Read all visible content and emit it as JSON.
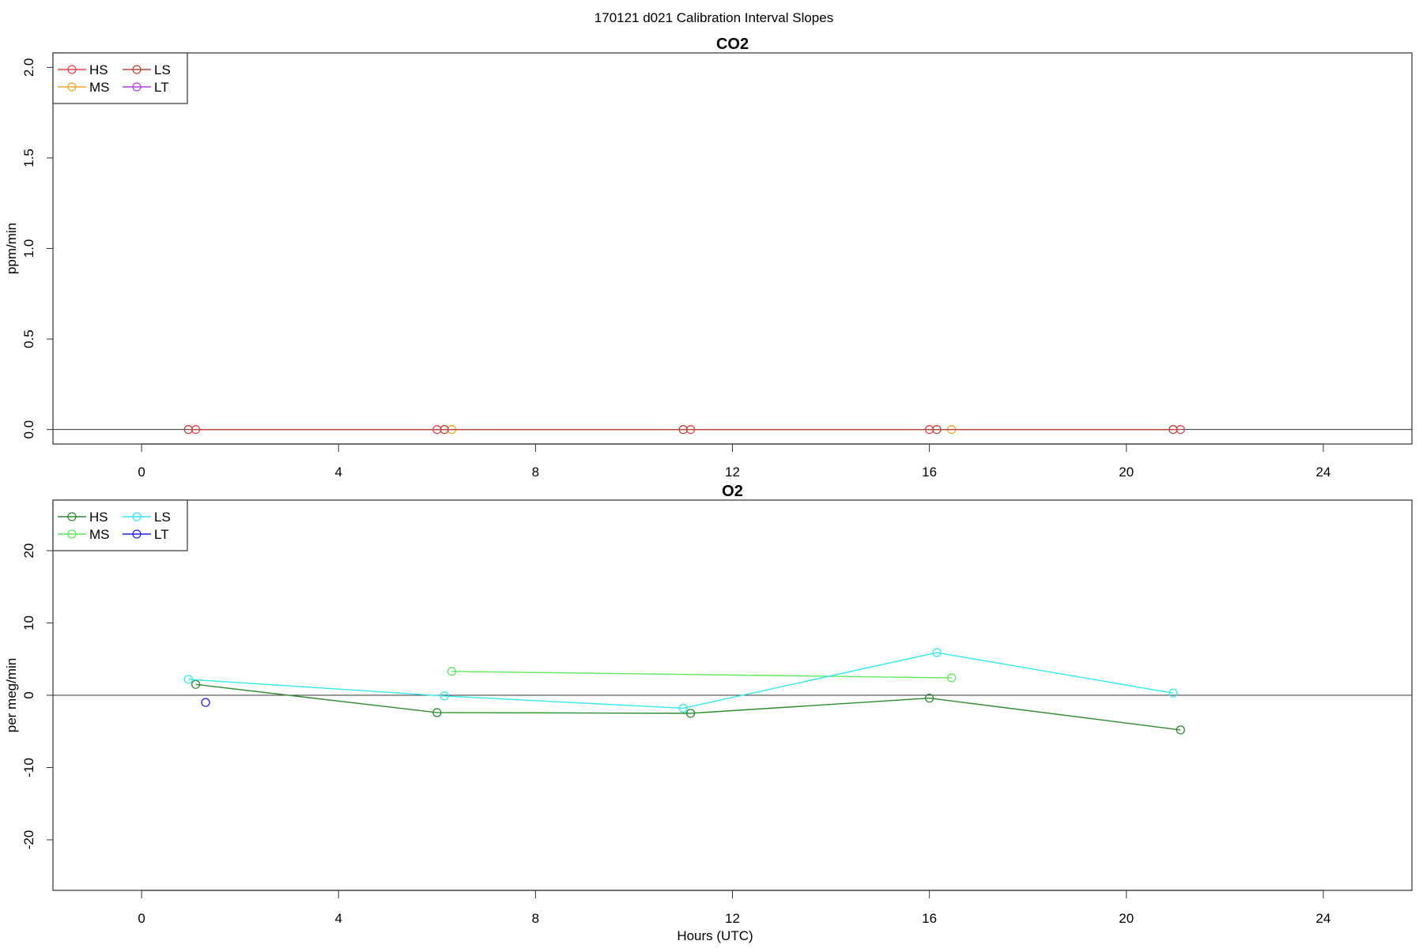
{
  "page_title": "170121   d021   Calibration Interval Slopes",
  "chart_data": [
    {
      "type": "line",
      "title": "CO2",
      "xlabel": "",
      "ylabel": "ppm/min",
      "xlim": [
        -1.8,
        25.8
      ],
      "ylim": [
        -0.08,
        2.08
      ],
      "xticks": [
        0,
        4,
        8,
        12,
        16,
        20,
        24
      ],
      "yticks": [
        0.0,
        0.5,
        1.0,
        1.5,
        2.0
      ],
      "ytick_labels": [
        "0.0",
        "0.5",
        "1.0",
        "1.5",
        "2.0"
      ],
      "zero_line": true,
      "grid": false,
      "legend_position": "top-left",
      "legend_columns": 2,
      "series": [
        {
          "name": "HS",
          "color": "#e8454b",
          "x": [
            1.1,
            6.0,
            11.15,
            16.0,
            21.1
          ],
          "y": [
            0.0,
            0.0,
            0.0,
            0.0,
            0.0
          ]
        },
        {
          "name": "MS",
          "color": "#f5a52e",
          "x": [
            6.3,
            16.45
          ],
          "y": [
            0.0,
            0.0
          ]
        },
        {
          "name": "LS",
          "color": "#b5473d",
          "x": [
            0.95,
            6.15,
            11.0,
            16.15,
            20.95
          ],
          "y": [
            0.0,
            0.0,
            0.0,
            0.0,
            0.0
          ]
        },
        {
          "name": "LT",
          "color": "#b040e0",
          "x": [],
          "y": []
        }
      ]
    },
    {
      "type": "line",
      "title": "O2",
      "xlabel": "Hours (UTC)",
      "ylabel": "per meg/min",
      "xlim": [
        -1.8,
        25.8
      ],
      "ylim": [
        -27,
        27
      ],
      "xticks": [
        0,
        4,
        8,
        12,
        16,
        20,
        24
      ],
      "yticks": [
        -20,
        -10,
        0,
        10,
        20
      ],
      "ytick_labels": [
        "-20",
        "-10",
        "0",
        "10",
        "20"
      ],
      "zero_line": true,
      "grid": false,
      "legend_position": "top-left",
      "legend_columns": 2,
      "series": [
        {
          "name": "HS",
          "color": "#2e8b2e",
          "x": [
            1.1,
            6.0,
            11.15,
            16.0,
            21.1
          ],
          "y": [
            1.5,
            -2.4,
            -2.5,
            -0.4,
            -4.8
          ]
        },
        {
          "name": "MS",
          "color": "#5ee65e",
          "x": [
            6.3,
            16.45
          ],
          "y": [
            3.3,
            2.4
          ]
        },
        {
          "name": "LS",
          "color": "#33e8ee",
          "x": [
            0.95,
            6.15,
            11.0,
            16.15,
            20.95
          ],
          "y": [
            2.2,
            -0.1,
            -1.8,
            5.9,
            0.3
          ]
        },
        {
          "name": "LT",
          "color": "#2323e0",
          "x": [
            1.3
          ],
          "y": [
            -1.0
          ]
        }
      ]
    }
  ]
}
